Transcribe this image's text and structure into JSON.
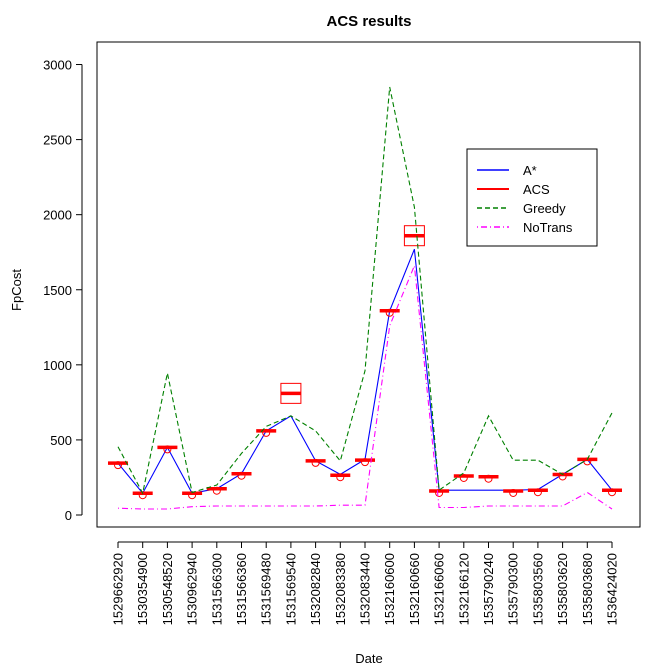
{
  "chart_data": {
    "type": "line",
    "title": "ACS results",
    "xlabel": "Date",
    "ylabel": "FpCost",
    "categories": [
      "1529662920",
      "1530354900",
      "1530548520",
      "1530962940",
      "1531566300",
      "1531566360",
      "1531569480",
      "1531569540",
      "1532082840",
      "1532083380",
      "1532083440",
      "1532160600",
      "1532160660",
      "1532166060",
      "1532166120",
      "1535790240",
      "1535790300",
      "1535803560",
      "1535803620",
      "1535803680",
      "1536424020"
    ],
    "ylim": [
      -80,
      3150
    ],
    "yticks": [
      0,
      500,
      1000,
      1500,
      2000,
      2500,
      3000
    ],
    "grid": false,
    "legend_position": "right",
    "series": [
      {
        "name": "A*",
        "style": "solid",
        "color": "#0000ff",
        "values": [
          345,
          145,
          450,
          145,
          175,
          275,
          560,
          660,
          360,
          270,
          370,
          1360,
          1770,
          165,
          165,
          165,
          165,
          170,
          270,
          370,
          165
        ]
      },
      {
        "name": "ACS",
        "style": "box",
        "color": "#ff0000",
        "values": [
          345,
          145,
          450,
          145,
          175,
          275,
          560,
          810,
          360,
          265,
          365,
          1360,
          1860,
          160,
          260,
          255,
          160,
          165,
          270,
          370,
          165
        ]
      },
      {
        "name": "Greedy",
        "style": "dashed",
        "color": "#008000",
        "values": [
          455,
          145,
          945,
          150,
          200,
          410,
          590,
          660,
          560,
          360,
          960,
          2850,
          2050,
          165,
          280,
          660,
          365,
          365,
          270,
          370,
          680
        ]
      },
      {
        "name": "NoTrans",
        "style": "dotdash",
        "color": "#ff00ff",
        "values": [
          45,
          40,
          40,
          55,
          60,
          60,
          60,
          60,
          60,
          65,
          65,
          1260,
          1660,
          50,
          50,
          60,
          60,
          60,
          60,
          150,
          40
        ]
      }
    ]
  }
}
